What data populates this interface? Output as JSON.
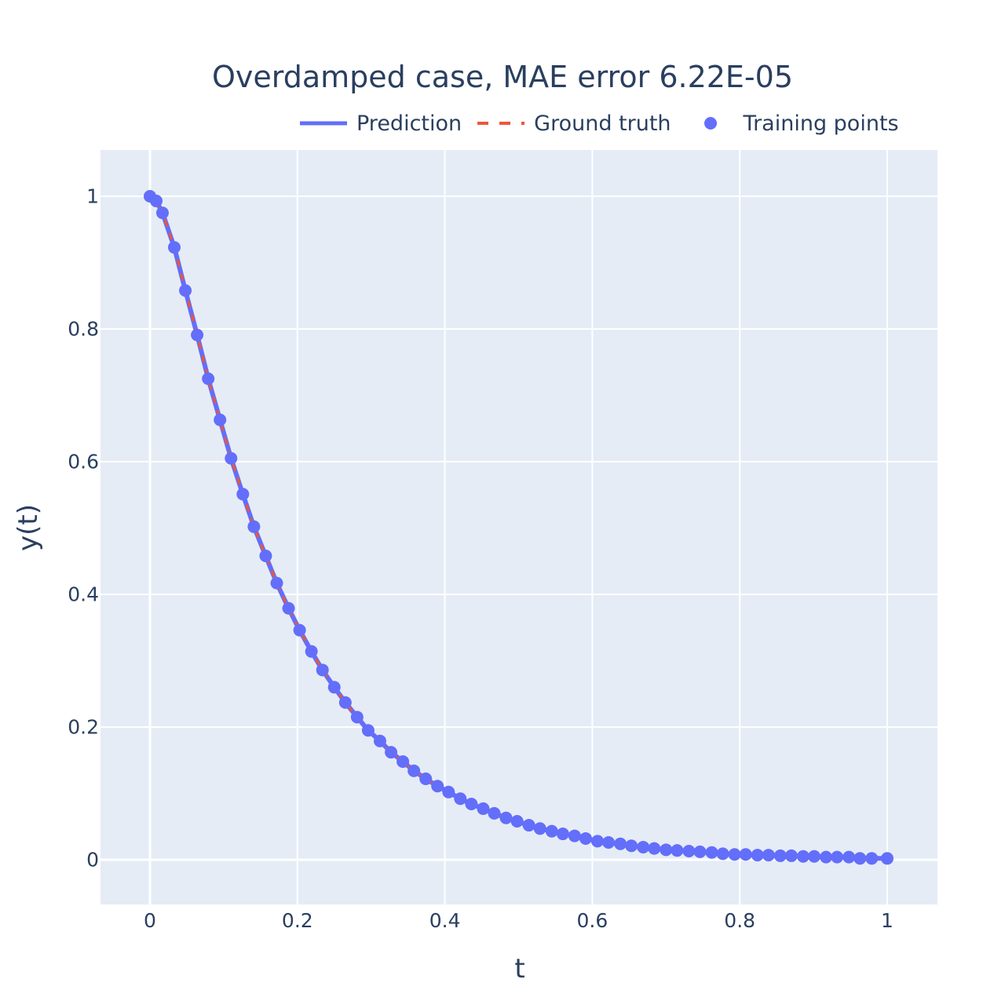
{
  "chart_data": {
    "type": "line",
    "title": "Overdamped case, MAE error 6.22E-05",
    "xlabel": "t",
    "ylabel": "y(t)",
    "xlim": [
      -0.067,
      1.068
    ],
    "ylim": [
      -0.067,
      1.07
    ],
    "grid": true,
    "legend_position": "top-right, horizontal",
    "x_ticks": [
      "0",
      "0.2",
      "0.4",
      "0.6",
      "0.8",
      "1"
    ],
    "y_ticks": [
      "0",
      "0.2",
      "0.4",
      "0.6",
      "0.8",
      "1"
    ],
    "legend": [
      {
        "name": "Prediction",
        "style": "solid line",
        "color": "#636efa"
      },
      {
        "name": "Ground truth",
        "style": "dashed line",
        "color": "#ef553b"
      },
      {
        "name": "Training points",
        "style": "markers",
        "color": "#636efa"
      }
    ],
    "series": [
      {
        "name": "Prediction",
        "mode": "lines",
        "color": "#636efa"
      },
      {
        "name": "Ground truth",
        "mode": "lines-dash",
        "color": "#ef553b"
      },
      {
        "name": "Training points",
        "mode": "markers",
        "color": "#636efa"
      }
    ],
    "x": [
      0,
      0.0085,
      0.017,
      0.033,
      0.048,
      0.064,
      0.079,
      0.095,
      0.11,
      0.126,
      0.141,
      0.157,
      0.172,
      0.188,
      0.203,
      0.219,
      0.234,
      0.25,
      0.265,
      0.281,
      0.296,
      0.312,
      0.327,
      0.343,
      0.358,
      0.374,
      0.39,
      0.405,
      0.421,
      0.436,
      0.452,
      0.467,
      0.483,
      0.498,
      0.514,
      0.529,
      0.545,
      0.56,
      0.576,
      0.591,
      0.607,
      0.622,
      0.638,
      0.653,
      0.669,
      0.684,
      0.7,
      0.715,
      0.731,
      0.746,
      0.762,
      0.777,
      0.793,
      0.808,
      0.824,
      0.839,
      0.855,
      0.87,
      0.886,
      0.901,
      0.917,
      0.932,
      0.948,
      0.963,
      0.979,
      1.0
    ],
    "y": [
      1.0,
      0.993,
      0.975,
      0.923,
      0.858,
      0.791,
      0.725,
      0.663,
      0.605,
      0.551,
      0.502,
      0.458,
      0.417,
      0.379,
      0.346,
      0.314,
      0.286,
      0.26,
      0.237,
      0.215,
      0.195,
      0.179,
      0.162,
      0.148,
      0.134,
      0.122,
      0.111,
      0.102,
      0.092,
      0.084,
      0.077,
      0.07,
      0.063,
      0.058,
      0.052,
      0.047,
      0.043,
      0.039,
      0.036,
      0.032,
      0.028,
      0.026,
      0.024,
      0.021,
      0.019,
      0.017,
      0.015,
      0.014,
      0.013,
      0.012,
      0.011,
      0.009,
      0.008,
      0.008,
      0.007,
      0.007,
      0.006,
      0.006,
      0.005,
      0.005,
      0.004,
      0.004,
      0.004,
      0.002,
      0.002,
      0.002
    ]
  },
  "colors": {
    "plot_bg": "#e5ecf6",
    "grid": "#ffffff",
    "prediction": "#636efa",
    "ground_truth": "#ef553b",
    "text": "#2a3f5f"
  }
}
